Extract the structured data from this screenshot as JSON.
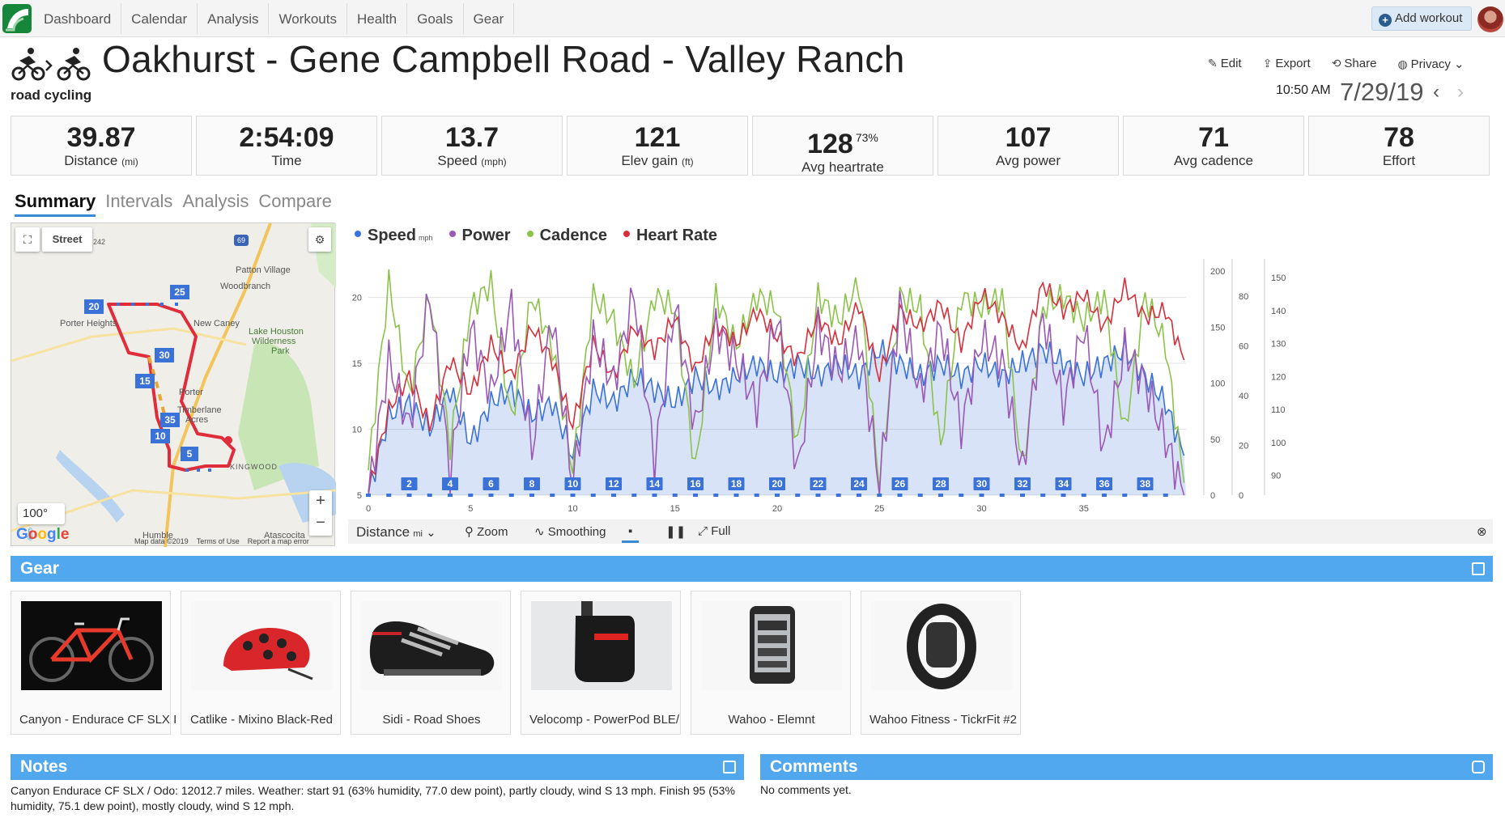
{
  "nav": {
    "items": [
      "Dashboard",
      "Calendar",
      "Analysis",
      "Workouts",
      "Health",
      "Goals",
      "Gear"
    ],
    "add_workout": "Add workout"
  },
  "workout": {
    "title": "Oakhurst - Gene Campbell Road - Valley Ranch",
    "sport": "road cycling",
    "time": "10:50 AM",
    "date": "7/29/19"
  },
  "actions": [
    "Edit",
    "Export",
    "Share",
    "Privacy"
  ],
  "stats": [
    {
      "value": "39.87",
      "label": "Distance",
      "unit": "(mi)"
    },
    {
      "value": "2:54:09",
      "label": "Time",
      "unit": ""
    },
    {
      "value": "13.7",
      "label": "Speed",
      "unit": "(mph)"
    },
    {
      "value": "121",
      "label": "Elev gain",
      "unit": "(ft)"
    },
    {
      "value": "128",
      "label": "Avg heartrate",
      "unit": "",
      "sup": "73%"
    },
    {
      "value": "107",
      "label": "Avg power",
      "unit": ""
    },
    {
      "value": "71",
      "label": "Avg cadence",
      "unit": ""
    },
    {
      "value": "78",
      "label": "Effort",
      "unit": ""
    }
  ],
  "tabs": [
    "Summary",
    "Intervals",
    "Analysis",
    "Compare"
  ],
  "map": {
    "type_label": "Street",
    "temperature": "100°",
    "places": [
      "Patton Village",
      "Woodbranch",
      "New Caney",
      "Porter Heights",
      "Lake Houston",
      "Wilderness",
      "Park",
      "Porter",
      "Timberlane",
      "Acres",
      "KINGWOOD",
      "Humble",
      "Atascocita"
    ],
    "markers": [
      "20",
      "25",
      "30",
      "15",
      "35",
      "10",
      "5"
    ],
    "highway": "69",
    "highway_small": "242",
    "google": "Google",
    "map_data": "Map data ©2019",
    "terms": "Terms of Use",
    "report": "Report a map error"
  },
  "chart": {
    "legend": [
      {
        "name": "Speed",
        "unit": "mph",
        "color": "#3a72d8"
      },
      {
        "name": "Power",
        "unit": "",
        "color": "#9b59b6"
      },
      {
        "name": "Cadence",
        "unit": "",
        "color": "#8bc34a"
      },
      {
        "name": "Heart Rate",
        "unit": "",
        "color": "#d62f3b"
      }
    ],
    "toolbar": {
      "axis": "Distance",
      "axis_unit": "mi",
      "zoom": "Zoom",
      "smoothing": "Smoothing",
      "full": "Full"
    }
  },
  "chart_data": {
    "type": "line",
    "xlabel": "Distance (mi)",
    "xlim": [
      0,
      40
    ],
    "x_ticks": [
      0,
      5,
      10,
      15,
      20,
      25,
      30,
      35
    ],
    "lap_markers": [
      2,
      4,
      6,
      8,
      10,
      12,
      14,
      16,
      18,
      20,
      22,
      24,
      26,
      28,
      30,
      32,
      34,
      36,
      38
    ],
    "axes": {
      "speed": {
        "ticks": [
          5,
          10,
          15,
          20
        ],
        "ylim": [
          5,
          22
        ]
      },
      "power": {
        "ticks": [
          0,
          50,
          100,
          150,
          200
        ],
        "ylim": [
          0,
          200
        ]
      },
      "cadence": {
        "ticks": [
          0,
          20,
          40,
          60,
          80
        ],
        "ylim": [
          0,
          90
        ]
      },
      "heart_rate": {
        "ticks": [
          90,
          100,
          110,
          120,
          130,
          140,
          150
        ],
        "ylim": [
          84,
          152
        ]
      }
    },
    "series": [
      {
        "name": "Speed",
        "x": [
          0,
          1,
          2,
          3,
          4,
          5,
          6,
          7,
          8,
          9,
          10,
          11,
          12,
          13,
          14,
          15,
          16,
          17,
          18,
          19,
          20,
          21,
          22,
          23,
          24,
          25,
          26,
          27,
          28,
          29,
          30,
          31,
          32,
          33,
          34,
          35,
          36,
          37,
          38,
          39,
          39.9
        ],
        "values": [
          5,
          11,
          12,
          10,
          13,
          9,
          12,
          13,
          11,
          12,
          8,
          13,
          12,
          14,
          13,
          12,
          14,
          13,
          14,
          15,
          14,
          15,
          14,
          15,
          14,
          16,
          15,
          14,
          15,
          14,
          15,
          14,
          15,
          16,
          15,
          14,
          15,
          16,
          14,
          12,
          8
        ]
      },
      {
        "name": "Power",
        "x": [
          0,
          1,
          2,
          3,
          4,
          5,
          6,
          7,
          8,
          9,
          10,
          11,
          12,
          13,
          14,
          15,
          16,
          17,
          18,
          19,
          20,
          21,
          22,
          23,
          24,
          25,
          26,
          27,
          28,
          29,
          30,
          31,
          32,
          33,
          34,
          35,
          36,
          37,
          38,
          39,
          39.9
        ],
        "values": [
          0,
          120,
          60,
          180,
          20,
          150,
          90,
          170,
          40,
          160,
          10,
          140,
          100,
          180,
          30,
          170,
          60,
          150,
          120,
          80,
          160,
          20,
          150,
          110,
          140,
          10,
          170,
          90,
          150,
          60,
          140,
          120,
          20,
          160,
          80,
          150,
          40,
          130,
          100,
          50,
          0
        ]
      },
      {
        "name": "Cadence",
        "x": [
          0,
          1,
          2,
          3,
          4,
          5,
          6,
          7,
          8,
          9,
          10,
          11,
          12,
          13,
          14,
          15,
          16,
          17,
          18,
          19,
          20,
          21,
          22,
          23,
          24,
          25,
          26,
          27,
          28,
          29,
          30,
          31,
          32,
          33,
          34,
          35,
          36,
          37,
          38,
          39,
          39.9
        ],
        "values": [
          10,
          85,
          40,
          80,
          20,
          75,
          85,
          30,
          80,
          60,
          10,
          80,
          70,
          45,
          80,
          75,
          10,
          80,
          60,
          80,
          75,
          20,
          80,
          70,
          85,
          5,
          80,
          75,
          20,
          80,
          75,
          80,
          10,
          75,
          80,
          70,
          80,
          25,
          80,
          60,
          5
        ]
      },
      {
        "name": "Heart Rate",
        "x": [
          0,
          1,
          2,
          3,
          4,
          5,
          6,
          7,
          8,
          9,
          10,
          11,
          12,
          13,
          14,
          15,
          16,
          17,
          18,
          19,
          20,
          21,
          22,
          23,
          24,
          25,
          26,
          27,
          28,
          29,
          30,
          31,
          32,
          33,
          34,
          35,
          36,
          37,
          38,
          39,
          39.9
        ],
        "values": [
          85,
          110,
          120,
          105,
          125,
          115,
          130,
          120,
          135,
          125,
          105,
          130,
          120,
          135,
          128,
          138,
          122,
          136,
          130,
          140,
          132,
          125,
          138,
          130,
          142,
          120,
          140,
          135,
          142,
          130,
          145,
          138,
          128,
          148,
          140,
          145,
          135,
          147,
          138,
          140,
          125
        ]
      }
    ]
  },
  "gear": {
    "title": "Gear",
    "items": [
      "Canyon - Endurace CF SLX I",
      "Catlike - Mixino Black-Red",
      "Sidi - Road Shoes",
      "Velocomp - PowerPod BLE/",
      "Wahoo - Elemnt",
      "Wahoo Fitness - TickrFit #2"
    ]
  },
  "notes": {
    "title": "Notes",
    "text": "Canyon Endurace CF SLX / Odo: 12012.7 miles. Weather: start 91 (63% humidity, 77.0 dew point), partly cloudy, wind S 13 mph. Finish 95 (53% humidity, 75.1 dew point), mostly cloudy, wind S 12 mph."
  },
  "comments": {
    "title": "Comments",
    "text": "No comments yet."
  }
}
